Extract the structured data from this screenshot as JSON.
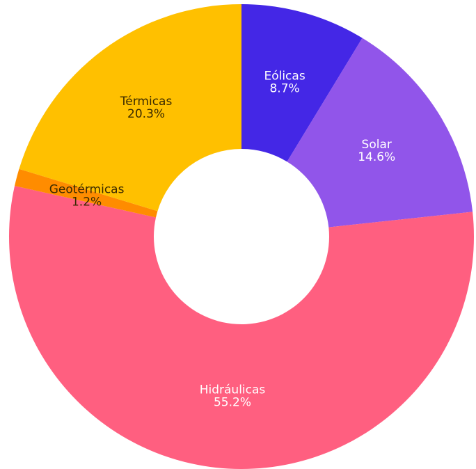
{
  "chart_data": {
    "type": "donut",
    "categories": [
      "Eólicas",
      "Solar",
      "Hidráulicas",
      "Geotérmicas",
      "Térmicas"
    ],
    "values": [
      8.7,
      14.6,
      55.2,
      1.2,
      20.3
    ],
    "value_labels": [
      "8.7%",
      "14.6%",
      "55.2%",
      "1.2%",
      "20.3%"
    ],
    "colors": [
      "#4427e6",
      "#9155ea",
      "#ff5f80",
      "#ff8c00",
      "#ffc000"
    ]
  }
}
